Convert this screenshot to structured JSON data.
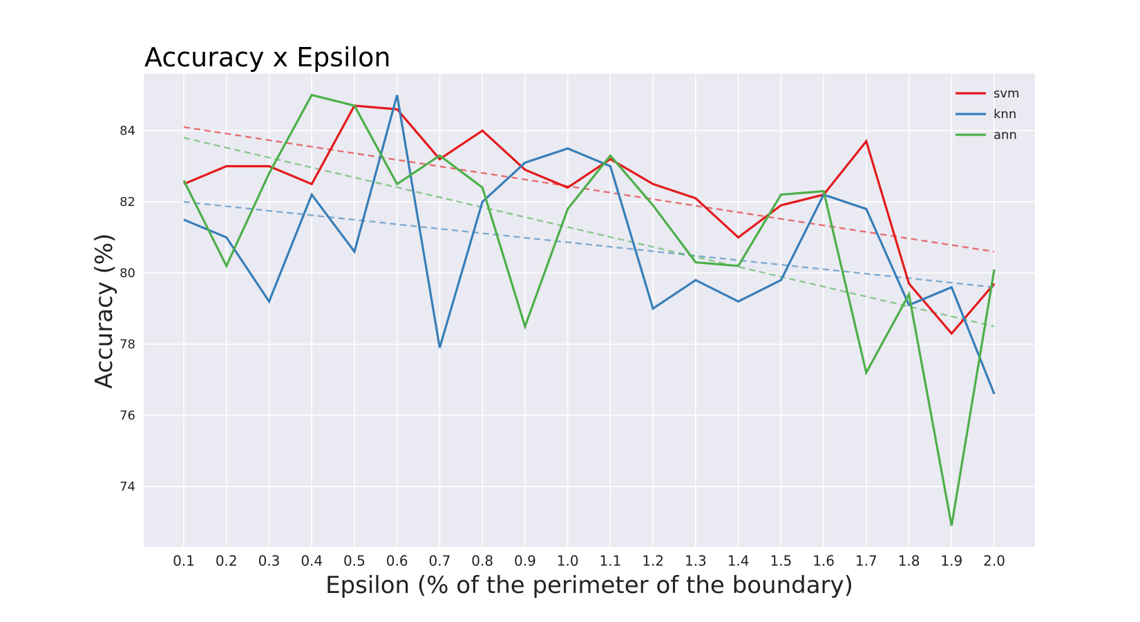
{
  "chart_data": {
    "type": "line",
    "title": "Accuracy x Epsilon",
    "xlabel": "Epsilon (% of the perimeter of the boundary)",
    "ylabel": "Accuracy (%)",
    "x": [
      "0.1",
      "0.2",
      "0.3",
      "0.4",
      "0.5",
      "0.6",
      "0.7",
      "0.8",
      "0.9",
      "1.0",
      "1.1",
      "1.2",
      "1.3",
      "1.4",
      "1.5",
      "1.6",
      "1.7",
      "1.8",
      "1.9",
      "2.0"
    ],
    "ylim": [
      72.3,
      85.6
    ],
    "yticks": [
      "74",
      "76",
      "78",
      "80",
      "82",
      "84"
    ],
    "grid": true,
    "legend_position": "top-right",
    "series": [
      {
        "name": "svm",
        "color": "#e41a1c",
        "values": [
          82.5,
          83.0,
          83.0,
          82.5,
          84.7,
          84.6,
          83.2,
          84.0,
          82.9,
          82.4,
          83.2,
          82.5,
          82.1,
          81.0,
          81.9,
          82.2,
          83.7,
          79.7,
          78.3,
          79.7
        ],
        "trend": [
          84.1,
          80.6
        ]
      },
      {
        "name": "knn",
        "color": "#377eb8",
        "values": [
          81.5,
          81.0,
          79.2,
          82.2,
          80.6,
          85.0,
          77.9,
          82.0,
          83.1,
          83.5,
          83.0,
          79.0,
          79.8,
          79.2,
          79.8,
          82.2,
          81.8,
          79.1,
          79.6,
          76.6
        ],
        "trend": [
          82.0,
          79.6
        ]
      },
      {
        "name": "ann",
        "color": "#4daf4a",
        "values": [
          82.6,
          80.2,
          82.8,
          85.0,
          84.7,
          82.5,
          83.3,
          82.4,
          78.5,
          81.8,
          83.3,
          81.9,
          80.3,
          80.2,
          82.2,
          82.3,
          77.2,
          79.4,
          72.9,
          80.1
        ],
        "trend": [
          83.8,
          78.5
        ]
      }
    ]
  }
}
